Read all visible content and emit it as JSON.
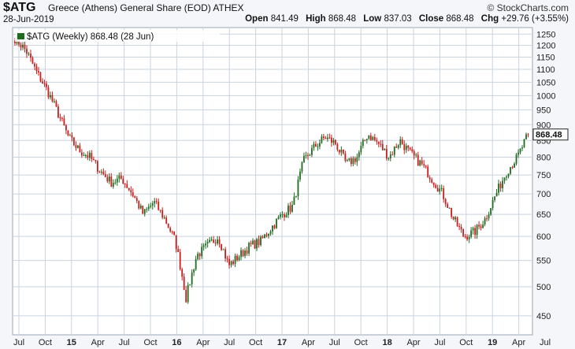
{
  "header": {
    "ticker": "$ATG",
    "description": "Greece (Athens) General Share (EOD) ATHEX",
    "brand": "© StockCharts.com",
    "date": "28-Jun-2019",
    "open_label": "Open",
    "open_value": "841.49",
    "high_label": "High",
    "high_value": "868.48",
    "low_label": "Low",
    "low_value": "837.03",
    "close_label": "Close",
    "close_value": "868.48",
    "chg_label": "Chg",
    "chg_value": "+29.76 (+3.55%)"
  },
  "legend_text": "$ATG (Weekly) 868.48 (28 Jun)",
  "last_price_tag": "868.48",
  "colors": {
    "up": "#1f6b1f",
    "down": "#c81e1e",
    "grid": "#c9d3e0",
    "legend_swatch": "#1f6b1f"
  },
  "chart_data": {
    "type": "candlestick",
    "title": "$ATG (Weekly) 868.48 (28 Jun)",
    "scale": "log",
    "ylim": [
      420,
      1280
    ],
    "grid": true,
    "y_axis_side": "right",
    "yticks": [
      450,
      500,
      550,
      600,
      650,
      700,
      750,
      800,
      850,
      900,
      950,
      1000,
      1050,
      1100,
      1150,
      1200,
      1250
    ],
    "xticks": [
      "Jul",
      "Oct",
      "15",
      "Apr",
      "Jul",
      "Oct",
      "16",
      "Apr",
      "Jul",
      "Oct",
      "17",
      "Apr",
      "Jul",
      "Oct",
      "18",
      "Apr",
      "Jul",
      "Oct",
      "19",
      "Apr",
      "Jul"
    ],
    "bold_xticks": [
      "15",
      "16",
      "17",
      "18",
      "19"
    ],
    "weeks_start": "2014-07",
    "anchor_prices": [
      1230,
      1180,
      1090,
      1020,
      940,
      860,
      820,
      800,
      760,
      730,
      740,
      700,
      650,
      680,
      640,
      590,
      480,
      560,
      580,
      600,
      540,
      560,
      580,
      590,
      620,
      650,
      670,
      790,
      830,
      860,
      840,
      780,
      800,
      870,
      840,
      800,
      850,
      810,
      780,
      740,
      700,
      640,
      600,
      610,
      640,
      700,
      760,
      800,
      868
    ]
  }
}
